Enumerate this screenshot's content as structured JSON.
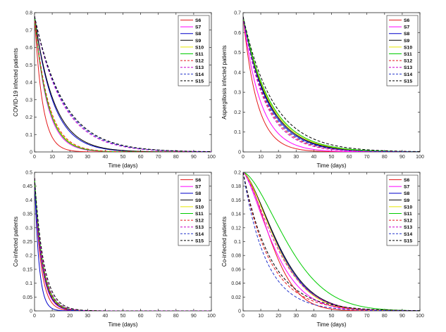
{
  "figure": {
    "colors": {
      "S6": "#e41a1c",
      "S7": "#ff00ff",
      "S8": "#0000cc",
      "S9": "#000000",
      "S10": "#e6e600",
      "S11": "#00cc00",
      "S12": "#e41a1c",
      "S13": "#cc00cc",
      "S14": "#2233cc",
      "S15": "#000000"
    },
    "dashed": [
      "S12",
      "S13",
      "S14",
      "S15"
    ]
  },
  "chart_data": [
    {
      "type": "line",
      "title": "",
      "xlabel": "Time (days)",
      "ylabel": "COVID-19 infected patients",
      "xlim": [
        0,
        100
      ],
      "ylim": [
        0,
        0.8
      ],
      "xticks": [
        "0",
        "10",
        "20",
        "30",
        "40",
        "50",
        "60",
        "70",
        "80",
        "90",
        "100"
      ],
      "yticks": [
        "0",
        "0.1",
        "0.2",
        "0.3",
        "0.4",
        "0.5",
        "0.6",
        "0.7",
        "0.8"
      ],
      "legend": "top-right",
      "series": [
        {
          "name": "S6",
          "y0": 0.78,
          "tau": 4.5
        },
        {
          "name": "S7",
          "y0": 0.78,
          "tau": 7.0
        },
        {
          "name": "S8",
          "y0": 0.78,
          "tau": 10.5
        },
        {
          "name": "S9",
          "y0": 0.78,
          "tau": 11.0
        },
        {
          "name": "S10",
          "y0": 0.78,
          "tau": 7.5
        },
        {
          "name": "S11",
          "y0": 0.78,
          "tau": 7.3
        },
        {
          "name": "S12",
          "y0": 0.78,
          "tau": 7.8
        },
        {
          "name": "S13",
          "y0": 0.78,
          "tau": 15.5
        },
        {
          "name": "S14",
          "y0": 0.78,
          "tau": 16.0
        },
        {
          "name": "S15",
          "y0": 0.78,
          "tau": 16.5
        }
      ]
    },
    {
      "type": "line",
      "title": "",
      "xlabel": "Time (days)",
      "ylabel": "Aspergillosis infected patients",
      "xlim": [
        0,
        100
      ],
      "ylim": [
        0,
        0.7
      ],
      "xticks": [
        "0",
        "10",
        "20",
        "30",
        "40",
        "50",
        "60",
        "70",
        "80",
        "90",
        "100"
      ],
      "yticks": [
        "0",
        "0.1",
        "0.2",
        "0.3",
        "0.4",
        "0.5",
        "0.6",
        "0.7"
      ],
      "legend": "top-right",
      "series": [
        {
          "name": "S6",
          "y0": 0.68,
          "tau": 8.0
        },
        {
          "name": "S7",
          "y0": 0.68,
          "tau": 10.0
        },
        {
          "name": "S8",
          "y0": 0.68,
          "tau": 14.0
        },
        {
          "name": "S9",
          "y0": 0.68,
          "tau": 14.5
        },
        {
          "name": "S10",
          "y0": 0.68,
          "tau": 15.0
        },
        {
          "name": "S11",
          "y0": 0.68,
          "tau": 15.5
        },
        {
          "name": "S12",
          "y0": 0.68,
          "tau": 13.0
        },
        {
          "name": "S13",
          "y0": 0.68,
          "tau": 12.5
        },
        {
          "name": "S14",
          "y0": 0.68,
          "tau": 13.5
        },
        {
          "name": "S15",
          "y0": 0.68,
          "tau": 17.0
        }
      ]
    },
    {
      "type": "line",
      "title": "",
      "xlabel": "Time (days)",
      "ylabel": "Co-infected patients",
      "xlim": [
        0,
        100
      ],
      "ylim": [
        0,
        0.5
      ],
      "xticks": [
        "0",
        "10",
        "20",
        "30",
        "40",
        "50",
        "60",
        "70",
        "80",
        "90",
        "100"
      ],
      "yticks": [
        "0",
        "0.05",
        "0.1",
        "0.15",
        "0.2",
        "0.25",
        "0.3",
        "0.35",
        "0.4",
        "0.45",
        "0.5"
      ],
      "legend": "top-right",
      "series": [
        {
          "name": "S6",
          "y0": 0.48,
          "tau": 3.5
        },
        {
          "name": "S7",
          "y0": 0.48,
          "tau": 4.0
        },
        {
          "name": "S8",
          "y0": 0.48,
          "tau": 2.5
        },
        {
          "name": "S9",
          "y0": 0.48,
          "tau": 4.2
        },
        {
          "name": "S10",
          "y0": 0.48,
          "tau": 4.5
        },
        {
          "name": "S11",
          "y0": 0.48,
          "tau": 4.6
        },
        {
          "name": "S12",
          "y0": 0.48,
          "tau": 4.4
        },
        {
          "name": "S13",
          "y0": 0.48,
          "tau": 4.8
        },
        {
          "name": "S14",
          "y0": 0.48,
          "tau": 4.1
        },
        {
          "name": "S15",
          "y0": 0.48,
          "tau": 5.2
        }
      ]
    },
    {
      "type": "line",
      "title": "",
      "xlabel": "Time (days)",
      "ylabel": "Co-infected patients",
      "xlim": [
        0,
        100
      ],
      "ylim": [
        0,
        0.2
      ],
      "xticks": [
        "0",
        "10",
        "20",
        "30",
        "40",
        "50",
        "60",
        "70",
        "80",
        "90",
        "100"
      ],
      "yticks": [
        "0",
        "0.02",
        "0.04",
        "0.06",
        "0.08",
        "0.1",
        "0.12",
        "0.14",
        "0.16",
        "0.18",
        "0.2"
      ],
      "legend": "top-right",
      "series": [
        {
          "name": "S6",
          "y0": 0.2,
          "tau": 20,
          "shape": 1.6
        },
        {
          "name": "S7",
          "y0": 0.2,
          "tau": 21,
          "shape": 1.4
        },
        {
          "name": "S8",
          "y0": 0.2,
          "tau": 24,
          "shape": 1.5
        },
        {
          "name": "S9",
          "y0": 0.2,
          "tau": 24.5,
          "shape": 1.5
        },
        {
          "name": "S10",
          "y0": 0.2,
          "tau": 23.5,
          "shape": 1.5
        },
        {
          "name": "S11",
          "y0": 0.2,
          "tau": 31,
          "shape": 1.6
        },
        {
          "name": "S12",
          "y0": 0.2,
          "tau": 15,
          "shape": 1.0
        },
        {
          "name": "S13",
          "y0": 0.2,
          "tau": 23,
          "shape": 1.4
        },
        {
          "name": "S14",
          "y0": 0.2,
          "tau": 13,
          "shape": 1.0
        },
        {
          "name": "S15",
          "y0": 0.2,
          "tau": 16,
          "shape": 1.0
        }
      ]
    }
  ]
}
